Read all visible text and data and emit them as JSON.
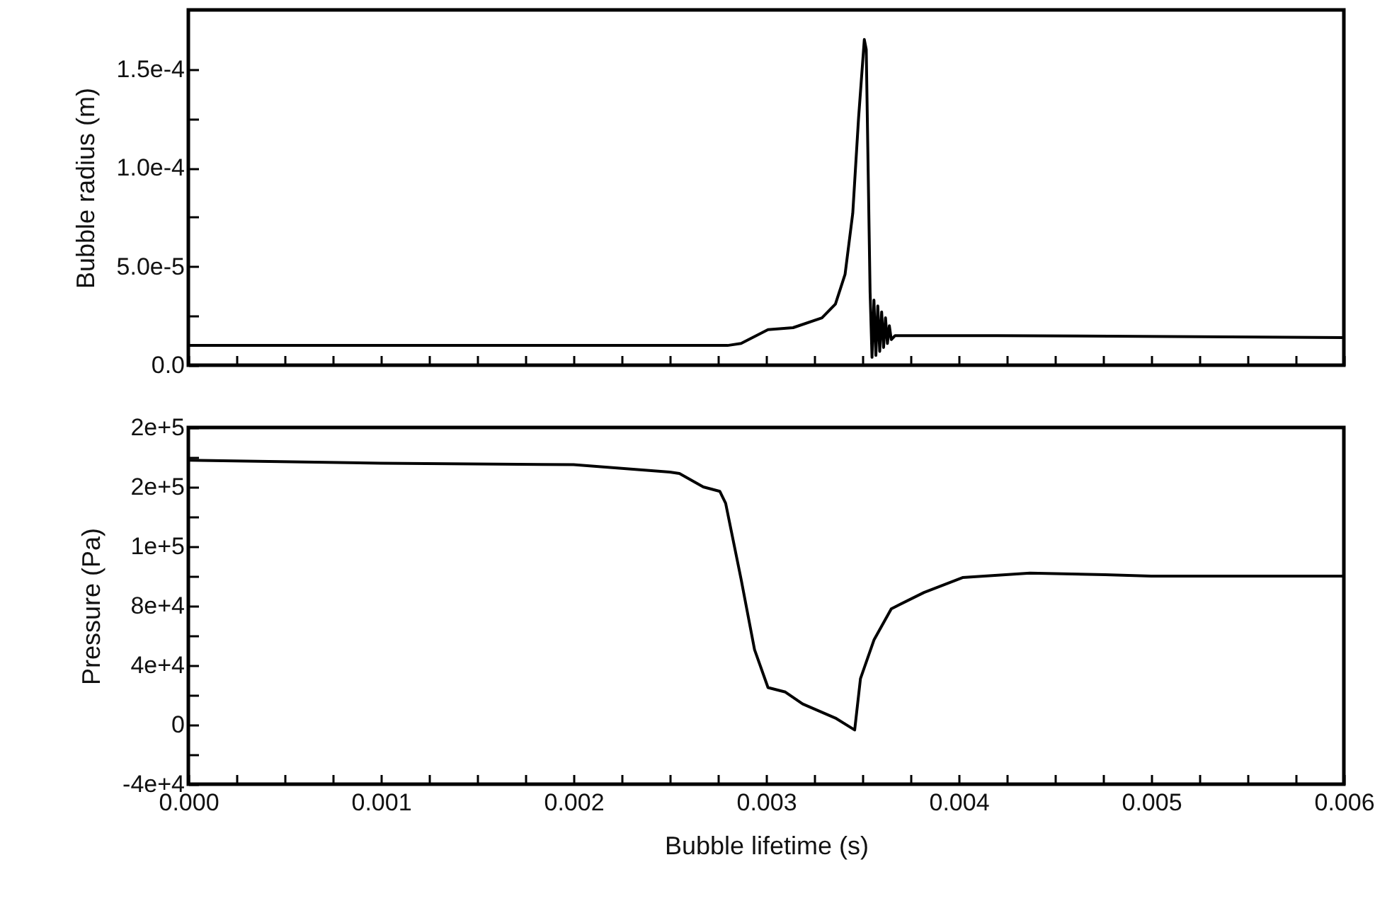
{
  "chart_data": [
    {
      "type": "line",
      "ylabel": "Bubble radius (m)",
      "xlim": [
        0,
        0.006
      ],
      "ylim": [
        0,
        0.00018
      ],
      "tick_labels": "y",
      "line_style": "solid",
      "xticks": [
        {
          "value": 0,
          "label": null
        },
        {
          "value": 0.00025,
          "label": null
        },
        {
          "value": 0.0005,
          "label": null
        },
        {
          "value": 0.00075,
          "label": null
        },
        {
          "value": 0.001,
          "label": null
        },
        {
          "value": 0.00125,
          "label": null
        },
        {
          "value": 0.0015,
          "label": null
        },
        {
          "value": 0.00175,
          "label": null
        },
        {
          "value": 0.002,
          "label": null
        },
        {
          "value": 0.00225,
          "label": null
        },
        {
          "value": 0.0025,
          "label": null
        },
        {
          "value": 0.00275,
          "label": null
        },
        {
          "value": 0.003,
          "label": null
        },
        {
          "value": 0.00325,
          "label": null
        },
        {
          "value": 0.0035,
          "label": null
        },
        {
          "value": 0.00375,
          "label": null
        },
        {
          "value": 0.004,
          "label": null
        },
        {
          "value": 0.00425,
          "label": null
        },
        {
          "value": 0.0045,
          "label": null
        },
        {
          "value": 0.00475,
          "label": null
        },
        {
          "value": 0.005,
          "label": null
        },
        {
          "value": 0.00525,
          "label": null
        },
        {
          "value": 0.0055,
          "label": null
        },
        {
          "value": 0.00575,
          "label": null
        },
        {
          "value": 0.006,
          "label": null
        }
      ],
      "yticks": [
        {
          "value": 0,
          "label": "0.0"
        },
        {
          "value": 2.5e-05,
          "label": null
        },
        {
          "value": 5e-05,
          "label": "5.0e-5"
        },
        {
          "value": 7.5e-05,
          "label": null
        },
        {
          "value": 0.0001,
          "label": "1.0e-4"
        },
        {
          "value": 0.000125,
          "label": null
        },
        {
          "value": 0.00015,
          "label": "1.5e-4"
        }
      ],
      "series": [
        {
          "color": "#000000",
          "x": [
            0,
            0.001,
            0.002,
            0.0028,
            0.00287,
            0.00301,
            0.00314,
            0.00329,
            0.00336,
            0.00341,
            0.00345,
            0.00348,
            0.00351,
            0.00352,
            0.00354,
            0.00355,
            0.00356,
            0.00357,
            0.00358,
            0.00359,
            0.0036,
            0.00361,
            0.00362,
            0.00363,
            0.00364,
            0.00365,
            0.00367,
            0.0042,
            0.006
          ],
          "values": [
            1e-05,
            1e-05,
            1e-05,
            1e-05,
            1.1e-05,
            1.8e-05,
            1.9e-05,
            2.4e-05,
            3.1e-05,
            4.6e-05,
            7.7e-05,
            0.000125,
            0.000165,
            0.00016,
            3.7e-05,
            4e-06,
            3.3e-05,
            5e-06,
            3e-05,
            7e-06,
            2.7e-05,
            9e-06,
            2.4e-05,
            1.1e-05,
            2e-05,
            1.3e-05,
            1.5e-05,
            1.5e-05,
            1.4e-05
          ]
        }
      ]
    },
    {
      "type": "line",
      "xlabel": "Bubble lifetime (s)",
      "ylabel": "Pressure (Pa)",
      "xlim": [
        0,
        0.006
      ],
      "ylim": [
        -40000,
        200000
      ],
      "line_style": "solid",
      "xticks": [
        {
          "value": 0,
          "label": "0.000"
        },
        {
          "value": 0.00025,
          "label": null
        },
        {
          "value": 0.0005,
          "label": null
        },
        {
          "value": 0.00075,
          "label": null
        },
        {
          "value": 0.001,
          "label": "0.001"
        },
        {
          "value": 0.00125,
          "label": null
        },
        {
          "value": 0.0015,
          "label": null
        },
        {
          "value": 0.00175,
          "label": null
        },
        {
          "value": 0.002,
          "label": "0.002"
        },
        {
          "value": 0.00225,
          "label": null
        },
        {
          "value": 0.0025,
          "label": null
        },
        {
          "value": 0.00275,
          "label": null
        },
        {
          "value": 0.003,
          "label": "0.003"
        },
        {
          "value": 0.00325,
          "label": null
        },
        {
          "value": 0.0035,
          "label": null
        },
        {
          "value": 0.00375,
          "label": null
        },
        {
          "value": 0.004,
          "label": "0.004"
        },
        {
          "value": 0.00425,
          "label": null
        },
        {
          "value": 0.0045,
          "label": null
        },
        {
          "value": 0.00475,
          "label": null
        },
        {
          "value": 0.005,
          "label": "0.005"
        },
        {
          "value": 0.00525,
          "label": null
        },
        {
          "value": 0.0055,
          "label": null
        },
        {
          "value": 0.00575,
          "label": null
        },
        {
          "value": 0.006,
          "label": "0.006"
        }
      ],
      "yticks": [
        {
          "value": -40000,
          "label": "-4e+4"
        },
        {
          "value": -20000,
          "label": null
        },
        {
          "value": 0,
          "label": "0"
        },
        {
          "value": 20000,
          "label": null
        },
        {
          "value": 40000,
          "label": "4e+4"
        },
        {
          "value": 60000,
          "label": null
        },
        {
          "value": 80000,
          "label": "8e+4"
        },
        {
          "value": 100000,
          "label": null
        },
        {
          "value": 120000,
          "label": "1e+5"
        },
        {
          "value": 140000,
          "label": null
        },
        {
          "value": 160000,
          "label": "2e+5"
        },
        {
          "value": 180000,
          "label": null
        },
        {
          "value": 200000,
          "label": "2e+5"
        }
      ],
      "series": [
        {
          "color": "#000000",
          "x": [
            0,
            0.001,
            0.002,
            0.0025,
            0.00255,
            0.002674,
            0.00276,
            0.00279,
            0.00287,
            0.00294,
            0.00301,
            0.0031,
            0.00319,
            0.00336,
            0.00346,
            0.00349,
            0.00356,
            0.00365,
            0.00382,
            0.00402,
            0.00437,
            0.00476,
            0.005,
            0.006
          ],
          "values": [
            178000,
            176000,
            175000,
            170000,
            169000,
            160000,
            157000,
            149000,
            98000,
            50500,
            25000,
            22000,
            14000,
            4500,
            -3500,
            31000,
            57000,
            78000,
            89000,
            99000,
            102000,
            101000,
            100000,
            100000
          ]
        }
      ]
    }
  ]
}
